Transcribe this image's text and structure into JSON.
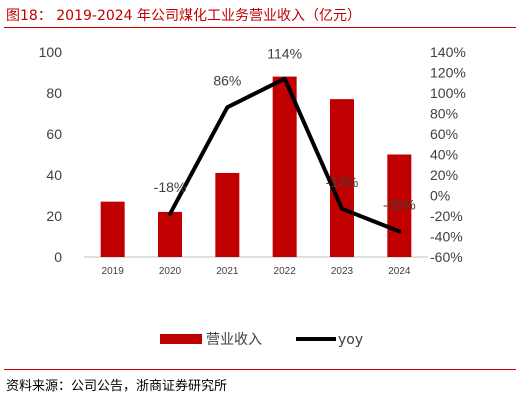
{
  "header": {
    "title": "图18： 2019-2024 年公司煤化工业务营业收入（亿元）"
  },
  "footer": {
    "source": "资料来源：公司公告，浙商证券研究所"
  },
  "colors": {
    "bar": "#c00000",
    "line": "#000000",
    "accent": "#c00000"
  },
  "chart_data": {
    "type": "bar",
    "title": "2019-2024 年公司煤化工业务营业收入（亿元）",
    "categories": [
      "2019",
      "2020",
      "2021",
      "2022",
      "2023",
      "2024"
    ],
    "series": [
      {
        "name": "营业收入",
        "type": "bar",
        "axis": "left",
        "values": [
          27,
          22,
          41,
          88,
          77,
          50
        ]
      },
      {
        "name": "yoy",
        "type": "line",
        "axis": "right",
        "values": [
          null,
          -18,
          86,
          114,
          -13,
          -35
        ],
        "labels": [
          "",
          "-18%",
          "86%",
          "114%",
          "-13%",
          "-35%"
        ]
      }
    ],
    "y_left": {
      "ylim": [
        0,
        100
      ],
      "ticks": [
        "0",
        "20",
        "40",
        "60",
        "80",
        "100"
      ]
    },
    "y_right": {
      "ylim": [
        -60,
        140
      ],
      "ticks": [
        "-60%",
        "-40%",
        "-20%",
        "0%",
        "20%",
        "40%",
        "60%",
        "80%",
        "100%",
        "120%",
        "140%"
      ]
    },
    "grid": false,
    "legend_position": "bottom"
  }
}
